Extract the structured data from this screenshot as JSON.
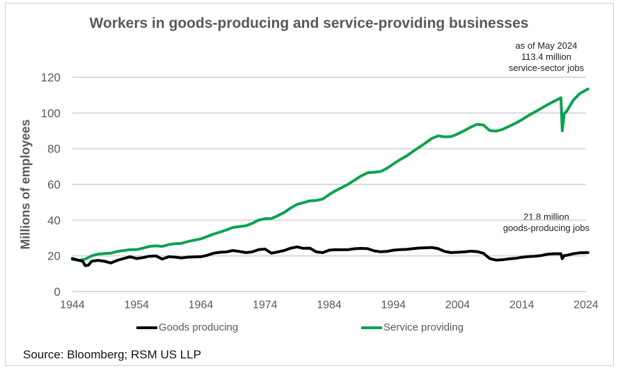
{
  "chart_data": {
    "type": "line",
    "title": "Workers in goods-producing and service-providing businesses",
    "xlabel": "",
    "ylabel": "Millions of employees",
    "xlim": [
      1944,
      2024
    ],
    "ylim": [
      0,
      120
    ],
    "x_ticks": [
      "1944",
      "1954",
      "1964",
      "1974",
      "1984",
      "1994",
      "2004",
      "2014",
      "2024"
    ],
    "y_ticks": [
      "0",
      "20",
      "40",
      "60",
      "80",
      "100",
      "120"
    ],
    "grid": true,
    "legend_position": "bottom",
    "series": [
      {
        "name": "Goods producing",
        "color": "#000000",
        "points": [
          [
            1944,
            18.5
          ],
          [
            1945,
            17.5
          ],
          [
            1945.6,
            17
          ],
          [
            1946,
            14.5
          ],
          [
            1946.5,
            14.8
          ],
          [
            1947,
            17
          ],
          [
            1948,
            17.5
          ],
          [
            1949,
            17
          ],
          [
            1950,
            16
          ],
          [
            1951,
            17.5
          ],
          [
            1952,
            18.5
          ],
          [
            1953,
            19.5
          ],
          [
            1954,
            18.5
          ],
          [
            1955,
            19
          ],
          [
            1956,
            19.8
          ],
          [
            1957,
            20
          ],
          [
            1958,
            18.2
          ],
          [
            1959,
            19.5
          ],
          [
            1960,
            19.3
          ],
          [
            1961,
            18.8
          ],
          [
            1962,
            19.3
          ],
          [
            1964,
            19.5
          ],
          [
            1965,
            20.3
          ],
          [
            1966,
            21.5
          ],
          [
            1967,
            22
          ],
          [
            1968,
            22.2
          ],
          [
            1969,
            23
          ],
          [
            1970,
            22.5
          ],
          [
            1971,
            21.8
          ],
          [
            1972,
            22.2
          ],
          [
            1973,
            23.5
          ],
          [
            1974,
            23.8
          ],
          [
            1975,
            21.5
          ],
          [
            1976,
            22.2
          ],
          [
            1977,
            23
          ],
          [
            1978,
            24.3
          ],
          [
            1979,
            25
          ],
          [
            1980,
            24.2
          ],
          [
            1981,
            24.3
          ],
          [
            1982,
            22.2
          ],
          [
            1983,
            21.8
          ],
          [
            1984,
            23.2
          ],
          [
            1985,
            23.5
          ],
          [
            1986,
            23.4
          ],
          [
            1987,
            23.5
          ],
          [
            1988,
            24
          ],
          [
            1989,
            24.2
          ],
          [
            1990,
            24
          ],
          [
            1991,
            22.8
          ],
          [
            1992,
            22.3
          ],
          [
            1993,
            22.5
          ],
          [
            1994,
            23.2
          ],
          [
            1995,
            23.5
          ],
          [
            1996,
            23.6
          ],
          [
            1997,
            24
          ],
          [
            1998,
            24.4
          ],
          [
            1999,
            24.5
          ],
          [
            2000,
            24.7
          ],
          [
            2001,
            24
          ],
          [
            2002,
            22.5
          ],
          [
            2003,
            21.8
          ],
          [
            2004,
            22
          ],
          [
            2005,
            22.2
          ],
          [
            2006,
            22.6
          ],
          [
            2007,
            22.4
          ],
          [
            2008,
            21.5
          ],
          [
            2009,
            18.5
          ],
          [
            2010,
            17.6
          ],
          [
            2011,
            17.8
          ],
          [
            2012,
            18.3
          ],
          [
            2013,
            18.6
          ],
          [
            2014,
            19.2
          ],
          [
            2015,
            19.6
          ],
          [
            2016,
            19.8
          ],
          [
            2017,
            20.2
          ],
          [
            2018,
            20.9
          ],
          [
            2019,
            21.2
          ],
          [
            2020.1,
            21.2
          ],
          [
            2020.3,
            18.4
          ],
          [
            2020.6,
            20.2
          ],
          [
            2021,
            20.3
          ],
          [
            2022,
            21.2
          ],
          [
            2023,
            21.7
          ],
          [
            2024.3,
            21.8
          ]
        ]
      },
      {
        "name": "Service providing",
        "color": "#0ba350",
        "points": [
          [
            1944,
            18
          ],
          [
            1945,
            17.5
          ],
          [
            1946,
            18.2
          ],
          [
            1947,
            20
          ],
          [
            1948,
            21
          ],
          [
            1949,
            21.3
          ],
          [
            1950,
            21.5
          ],
          [
            1951,
            22.5
          ],
          [
            1952,
            23
          ],
          [
            1953,
            23.5
          ],
          [
            1954,
            23.5
          ],
          [
            1955,
            24.3
          ],
          [
            1956,
            25.3
          ],
          [
            1957,
            25.6
          ],
          [
            1958,
            25.3
          ],
          [
            1959,
            26.3
          ],
          [
            1960,
            26.8
          ],
          [
            1961,
            27
          ],
          [
            1962,
            28
          ],
          [
            1963,
            28.8
          ],
          [
            1964,
            29.5
          ],
          [
            1965,
            30.8
          ],
          [
            1966,
            32.2
          ],
          [
            1967,
            33.3
          ],
          [
            1968,
            34.5
          ],
          [
            1969,
            35.9
          ],
          [
            1970,
            36.4
          ],
          [
            1971,
            36.8
          ],
          [
            1972,
            38.2
          ],
          [
            1973,
            40
          ],
          [
            1974,
            40.8
          ],
          [
            1975,
            40.9
          ],
          [
            1976,
            42.5
          ],
          [
            1977,
            44.3
          ],
          [
            1978,
            46.8
          ],
          [
            1979,
            48.8
          ],
          [
            1980,
            49.8
          ],
          [
            1981,
            50.8
          ],
          [
            1982,
            51
          ],
          [
            1983,
            51.8
          ],
          [
            1984,
            54.3
          ],
          [
            1985,
            56.5
          ],
          [
            1986,
            58.3
          ],
          [
            1987,
            60.2
          ],
          [
            1988,
            62.5
          ],
          [
            1989,
            64.8
          ],
          [
            1990,
            66.5
          ],
          [
            1991,
            66.8
          ],
          [
            1992,
            67.2
          ],
          [
            1993,
            69
          ],
          [
            1994,
            71.5
          ],
          [
            1995,
            73.8
          ],
          [
            1996,
            75.8
          ],
          [
            1997,
            78.3
          ],
          [
            1998,
            80.8
          ],
          [
            1999,
            83.2
          ],
          [
            2000,
            85.8
          ],
          [
            2001,
            87.2
          ],
          [
            2002,
            86.6
          ],
          [
            2003,
            86.8
          ],
          [
            2004,
            88.2
          ],
          [
            2005,
            90
          ],
          [
            2006,
            92
          ],
          [
            2007,
            93.6
          ],
          [
            2008,
            93.3
          ],
          [
            2009,
            90.2
          ],
          [
            2010,
            89.8
          ],
          [
            2011,
            90.8
          ],
          [
            2012,
            92.5
          ],
          [
            2013,
            94.2
          ],
          [
            2014,
            96.2
          ],
          [
            2015,
            98.5
          ],
          [
            2016,
            100.5
          ],
          [
            2017,
            102.5
          ],
          [
            2018,
            104.6
          ],
          [
            2019,
            106.5
          ],
          [
            2020.1,
            108.5
          ],
          [
            2020.3,
            90
          ],
          [
            2020.6,
            99.5
          ],
          [
            2021,
            101
          ],
          [
            2022,
            107
          ],
          [
            2023,
            110.8
          ],
          [
            2024.3,
            113.4
          ]
        ]
      }
    ],
    "annotations": [
      {
        "text_lines": [
          "as of May 2024",
          "113.4 million",
          "service-sector jobs"
        ],
        "position": "top-right"
      },
      {
        "text_lines": [
          "21.8 million",
          "goods-producing jobs"
        ],
        "position": "right"
      }
    ]
  },
  "annotations": {
    "service": [
      "as of May 2024",
      "113.4 million",
      "service-sector jobs"
    ],
    "goods": [
      "21.8 million",
      "goods-producing jobs"
    ]
  },
  "legend": {
    "goods_label": "Goods producing",
    "service_label": "Service providing",
    "goods_color": "#000000",
    "service_color": "#0ba350"
  },
  "source": "Source: Bloomberg; RSM US LLP"
}
